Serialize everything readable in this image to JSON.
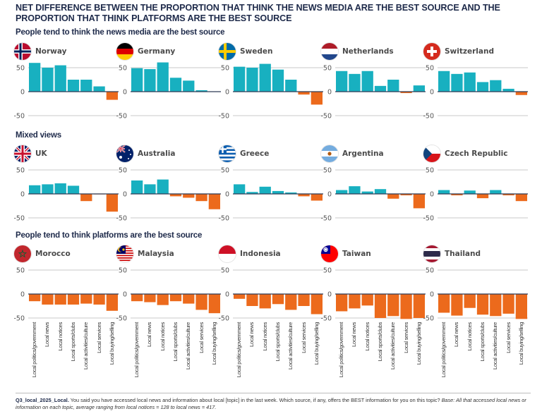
{
  "title": "NET DIFFERENCE BETWEEN THE PROPORTION THAT THINK THE NEWS MEDIA ARE THE BEST SOURCE AND THE PROPORTION THAT THINK PLATFORMS ARE THE BEST SOURCE",
  "colors": {
    "positive": "#18b0c0",
    "negative": "#ec6a1c",
    "gridline": "#c8c8c8",
    "zeroline": "#2e3a55"
  },
  "footnote": {
    "code": "Q3_local_2025_Local.",
    "question": " You said you have accessed local news and information about local [topic] in the last week. Which source, if any, offers the BEST information for you on this topic? ",
    "base": "Base: All that accessed local news or information on each topic, average ranging from local notices = 128 to local news = 417."
  },
  "chart_data": {
    "type": "bar",
    "title": "NET DIFFERENCE BETWEEN THE PROPORTION THAT THINK THE NEWS MEDIA ARE THE BEST SOURCE AND THE PROPORTION THAT THINK PLATFORMS ARE THE BEST SOURCE",
    "xlabel": "",
    "ylabel": "",
    "ylim": [
      -50,
      50
    ],
    "yticks": [
      50,
      0,
      -50
    ],
    "ytick_labels": [
      "50",
      "0",
      "-50"
    ],
    "grid": true,
    "categories": [
      "Local politics/government",
      "Local news",
      "Local notices",
      "Local sports/clubs",
      "Local activities/culture",
      "Local services",
      "Local buying/selling"
    ],
    "sections": [
      {
        "label": "People tend to think the news media are the best source",
        "countries": [
          {
            "name": "Norway",
            "flag": "norway-flag-icon",
            "values": [
              60,
              50,
              55,
              25,
              25,
              11,
              -17
            ]
          },
          {
            "name": "Germany",
            "flag": "germany-flag-icon",
            "values": [
              49,
              47,
              61,
              29,
              23,
              3,
              0
            ]
          },
          {
            "name": "Sweden",
            "flag": "sweden-flag-icon",
            "values": [
              52,
              50,
              58,
              46,
              25,
              -6,
              -27
            ]
          },
          {
            "name": "Netherlands",
            "flag": "netherlands-flag-icon",
            "values": [
              43,
              37,
              43,
              12,
              25,
              -3,
              13
            ]
          },
          {
            "name": "Switzerland",
            "flag": "switzerland-flag-icon",
            "values": [
              43,
              37,
              40,
              20,
              24,
              6,
              -7
            ]
          }
        ]
      },
      {
        "label": "Mixed views",
        "countries": [
          {
            "name": "UK",
            "flag": "uk-flag-icon",
            "values": [
              18,
              20,
              22,
              17,
              -15,
              -1,
              -37
            ]
          },
          {
            "name": "Australia",
            "flag": "australia-flag-icon",
            "values": [
              28,
              20,
              30,
              -5,
              -8,
              -15,
              -32
            ]
          },
          {
            "name": "Greece",
            "flag": "greece-flag-icon",
            "values": [
              20,
              4,
              15,
              6,
              3,
              -5,
              -14
            ]
          },
          {
            "name": "Argentina",
            "flag": "argentina-flag-icon",
            "values": [
              8,
              16,
              5,
              10,
              -10,
              -3,
              -30
            ]
          },
          {
            "name": "Czech Republic",
            "flag": "czech-republic-flag-icon",
            "values": [
              8,
              -3,
              7,
              -9,
              8,
              -3,
              -15
            ]
          }
        ]
      },
      {
        "label": "People tend to think platforms are the best source",
        "countries": [
          {
            "name": "Morocco",
            "flag": "morocco-flag-icon",
            "values": [
              -15,
              -22,
              -22,
              -22,
              -20,
              -22,
              -35
            ]
          },
          {
            "name": "Malaysia",
            "flag": "malaysia-flag-icon",
            "values": [
              -15,
              -17,
              -23,
              -15,
              -20,
              -33,
              -40
            ]
          },
          {
            "name": "Indonesia",
            "flag": "indonesia-flag-icon",
            "values": [
              -10,
              -25,
              -30,
              -21,
              -33,
              -25,
              -42
            ]
          },
          {
            "name": "Taiwan",
            "flag": "taiwan-flag-icon",
            "values": [
              -36,
              -30,
              -24,
              -50,
              -46,
              -52,
              -50
            ]
          },
          {
            "name": "Thailand",
            "flag": "thailand-flag-icon",
            "values": [
              -39,
              -45,
              -29,
              -43,
              -46,
              -41,
              -52
            ]
          }
        ]
      }
    ]
  }
}
